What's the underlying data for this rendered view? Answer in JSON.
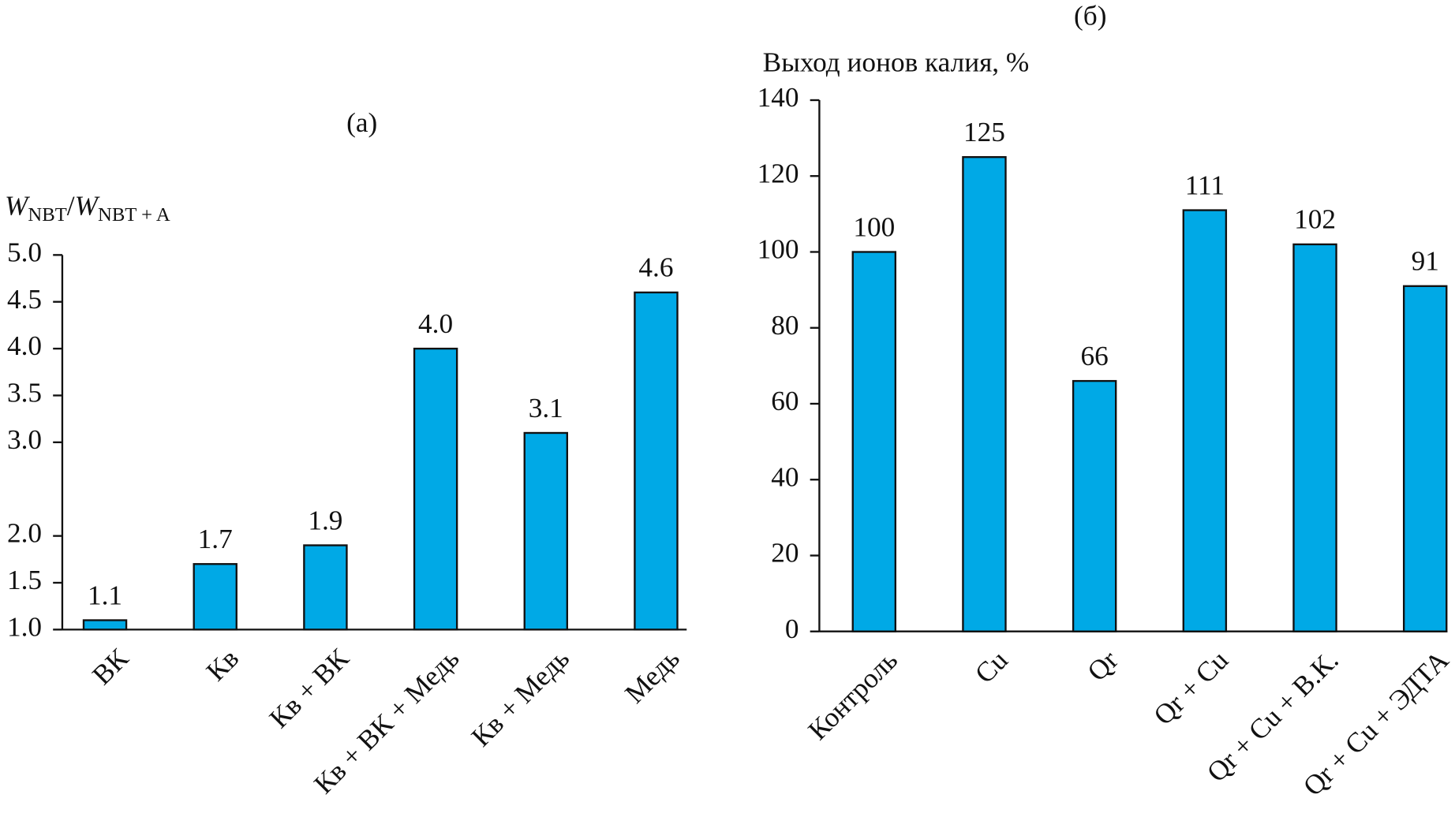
{
  "chart_data": [
    {
      "type": "bar",
      "title": "(а)",
      "y_label": [
        "W",
        "NBT",
        "/",
        "W",
        "NBT + A"
      ],
      "categories": [
        "ВК",
        "Кв",
        "Кв + ВК",
        "Кв + ВК + Медь",
        "Кв + Медь",
        "Медь"
      ],
      "values": [
        1.1,
        1.7,
        1.9,
        4.0,
        3.1,
        4.6
      ],
      "value_labels": [
        "1.1",
        "1.7",
        "1.9",
        "4.0",
        "3.1",
        "4.6"
      ],
      "color": "#00a9e6",
      "ylim": [
        1.0,
        5.0
      ],
      "yticks": [
        {
          "value": 1.0,
          "label": "1.0"
        },
        1.5,
        {
          "value": 2.0,
          "label": "2.0"
        },
        {
          "value": 3.0,
          "label": "3.0"
        },
        3.5,
        {
          "value": 4.0,
          "label": "4.0"
        },
        4.5,
        {
          "value": 5.0,
          "label": "5.0"
        }
      ]
    },
    {
      "type": "bar",
      "title": "(б)",
      "y_label": [
        "Выход ионов калия, %"
      ],
      "categories": [
        "Контроль",
        "Cu",
        "Qr",
        "Qr + Cu",
        "Qr + Cu + В.К.",
        "Qr + Cu + ЭДТА"
      ],
      "values": [
        100,
        125,
        66,
        111,
        102,
        91
      ],
      "color": "#00a9e6",
      "ylim": [
        0,
        140
      ],
      "yticks": [
        0,
        20,
        40,
        60,
        80,
        100,
        120,
        140
      ]
    }
  ]
}
